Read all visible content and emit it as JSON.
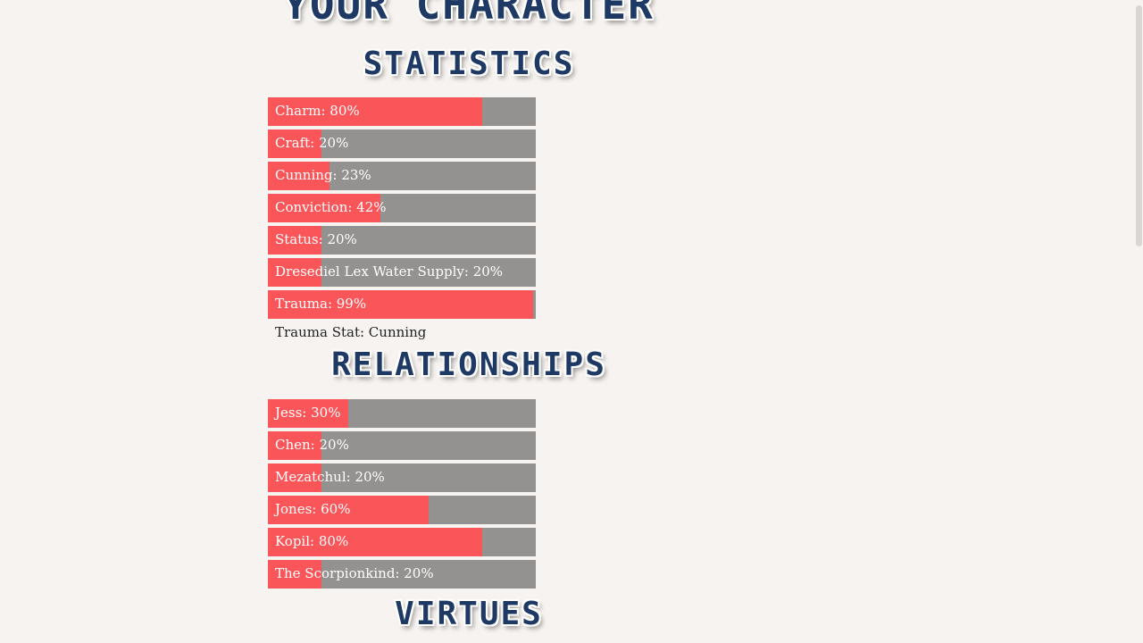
{
  "page": {
    "title": "Your Character"
  },
  "statistics": {
    "heading": "Statistics",
    "bar_color": "#fa5659",
    "track_color": "#949290",
    "items": [
      {
        "label": "Charm: 80%",
        "value": 80
      },
      {
        "label": "Craft: 20%",
        "value": 20
      },
      {
        "label": "Cunning: 23%",
        "value": 23
      },
      {
        "label": "Conviction: 42%",
        "value": 42
      },
      {
        "label": "Status: 20%",
        "value": 20
      },
      {
        "label": "Dresediel Lex Water Supply: 20%",
        "value": 20
      },
      {
        "label": "Trauma: 99%",
        "value": 99
      }
    ],
    "trauma_stat": "Trauma Stat: Cunning"
  },
  "relationships": {
    "heading": "Relationships",
    "items": [
      {
        "label": "Jess: 30%",
        "value": 30
      },
      {
        "label": "Chen: 20%",
        "value": 20
      },
      {
        "label": "Mezatchul: 20%",
        "value": 20
      },
      {
        "label": "Jones: 60%",
        "value": 60
      },
      {
        "label": "Kopil: 80%",
        "value": 80
      },
      {
        "label": "The Scorpionkind: 20%",
        "value": 20
      }
    ]
  },
  "virtues": {
    "heading": "Virtues"
  }
}
